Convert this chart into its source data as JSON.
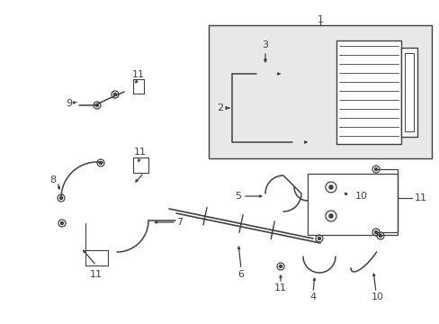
{
  "bg_color": "#ffffff",
  "box1_bg": "#e8e8e8",
  "line_color": "#404040",
  "figsize": [
    4.89,
    3.6
  ],
  "dpi": 100
}
